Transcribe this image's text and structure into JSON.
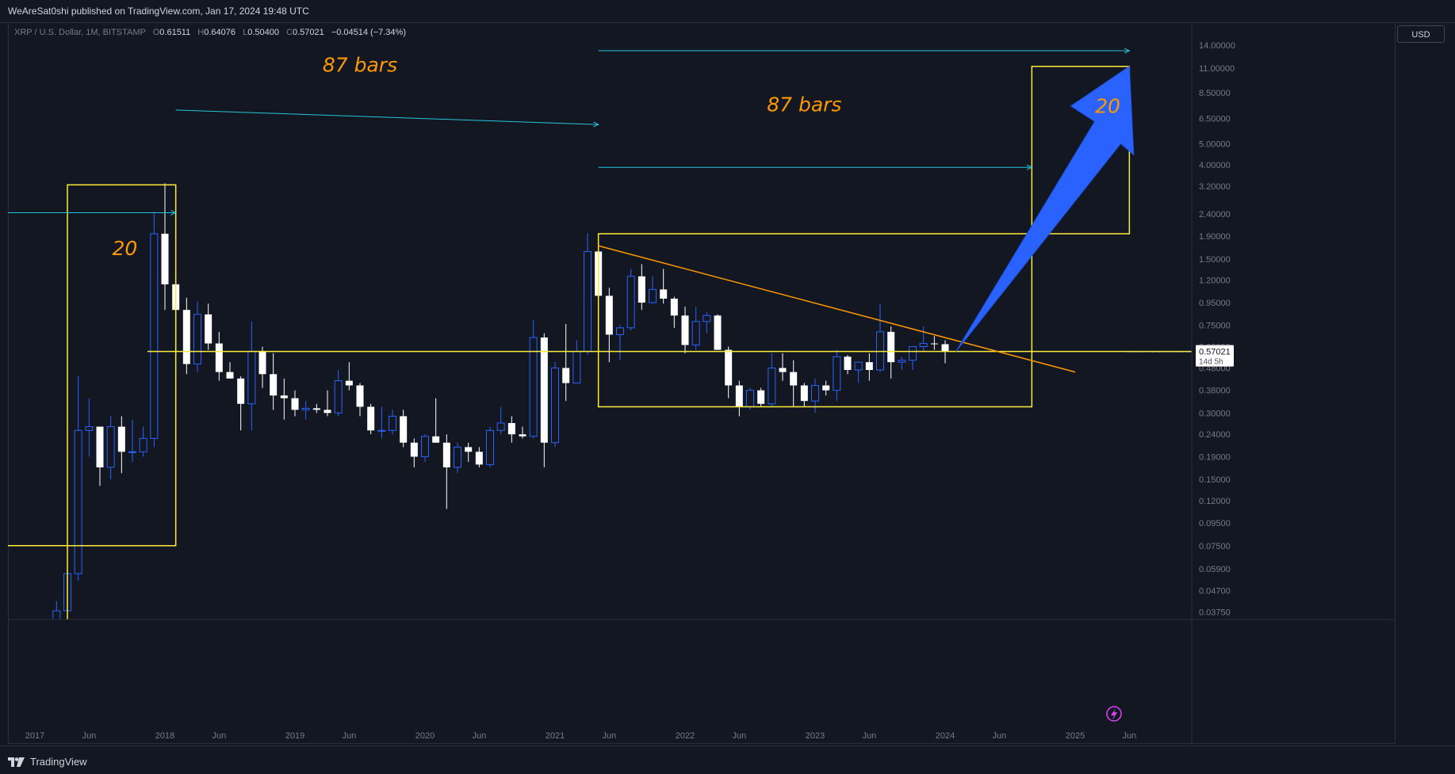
{
  "header": {
    "published": "WeAreSat0shi published on TradingView.com, Jan 17, 2024 19:48 UTC"
  },
  "legend": {
    "symbol": "XRP / U.S. Dollar, 1M, BITSTAMP",
    "o_label": "O",
    "o": "0.61511",
    "h_label": "H",
    "h": "0.64076",
    "l_label": "L",
    "l": "0.50400",
    "c_label": "C",
    "c": "0.57021",
    "change": "−0.04514 (−7.34%)"
  },
  "price_axis": {
    "currency": "USD",
    "current_price": "0.57021",
    "countdown": "14d 5h"
  },
  "footer": {
    "brand": "TradingView"
  },
  "colors": {
    "background": "#131722",
    "up_candle": "#2962ff",
    "down_candle": "#ffffff",
    "yellow": "#ffeb3b",
    "orange": "#ff9800",
    "cyan": "#26c6da",
    "arrow_blue": "#2962ff"
  },
  "chart_data": {
    "type": "candlestick",
    "y_scale": "log",
    "ylim": [
      0.0345,
      18.5
    ],
    "xlim": [
      "2017-01",
      "2025-09"
    ],
    "y_ticks": [
      "14.00000",
      "11.00000",
      "8.50000",
      "6.50000",
      "5.00000",
      "4.00000",
      "3.20000",
      "2.40000",
      "1.90000",
      "1.50000",
      "1.20000",
      "0.95000",
      "0.75000",
      "0.60000",
      "0.48000",
      "0.38000",
      "0.30000",
      "0.24000",
      "0.19000",
      "0.15000",
      "0.12000",
      "0.09500",
      "0.07500",
      "0.05900",
      "0.04700",
      "0.03750"
    ],
    "x_ticks": [
      {
        "t": "2017-01",
        "label": "2017"
      },
      {
        "t": "2017-06",
        "label": "Jun"
      },
      {
        "t": "2018-01",
        "label": "2018"
      },
      {
        "t": "2018-06",
        "label": "Jun"
      },
      {
        "t": "2019-01",
        "label": "2019"
      },
      {
        "t": "2019-06",
        "label": "Jun"
      },
      {
        "t": "2020-01",
        "label": "2020"
      },
      {
        "t": "2020-06",
        "label": "Jun"
      },
      {
        "t": "2021-01",
        "label": "2021"
      },
      {
        "t": "2021-06",
        "label": "Jun"
      },
      {
        "t": "2022-01",
        "label": "2022"
      },
      {
        "t": "2022-06",
        "label": "Jun"
      },
      {
        "t": "2023-01",
        "label": "2023"
      },
      {
        "t": "2023-06",
        "label": "Jun"
      },
      {
        "t": "2024-01",
        "label": "2024"
      },
      {
        "t": "2024-06",
        "label": "Jun"
      },
      {
        "t": "2025-01",
        "label": "2025"
      },
      {
        "t": "2025-06",
        "label": "Jun"
      }
    ],
    "candles": [
      {
        "t": "2017-03",
        "o": 0.0093,
        "h": 0.042,
        "l": 0.009,
        "c": 0.038
      },
      {
        "t": "2017-04",
        "o": 0.038,
        "h": 0.07,
        "l": 0.035,
        "c": 0.056
      },
      {
        "t": "2017-05",
        "o": 0.056,
        "h": 0.44,
        "l": 0.052,
        "c": 0.25
      },
      {
        "t": "2017-06",
        "o": 0.25,
        "h": 0.35,
        "l": 0.19,
        "c": 0.26
      },
      {
        "t": "2017-07",
        "o": 0.26,
        "h": 0.26,
        "l": 0.14,
        "c": 0.17
      },
      {
        "t": "2017-08",
        "o": 0.17,
        "h": 0.29,
        "l": 0.15,
        "c": 0.26
      },
      {
        "t": "2017-09",
        "o": 0.26,
        "h": 0.29,
        "l": 0.16,
        "c": 0.2
      },
      {
        "t": "2017-10",
        "o": 0.2,
        "h": 0.28,
        "l": 0.18,
        "c": 0.2
      },
      {
        "t": "2017-11",
        "o": 0.2,
        "h": 0.26,
        "l": 0.19,
        "c": 0.23
      },
      {
        "t": "2017-12",
        "o": 0.23,
        "h": 2.45,
        "l": 0.21,
        "c": 1.95
      },
      {
        "t": "2018-01",
        "o": 1.95,
        "h": 3.3,
        "l": 0.88,
        "c": 1.15
      },
      {
        "t": "2018-02",
        "o": 1.15,
        "h": 1.25,
        "l": 0.56,
        "c": 0.88
      },
      {
        "t": "2018-03",
        "o": 0.88,
        "h": 1.0,
        "l": 0.45,
        "c": 0.5
      },
      {
        "t": "2018-04",
        "o": 0.5,
        "h": 0.96,
        "l": 0.46,
        "c": 0.84
      },
      {
        "t": "2018-05",
        "o": 0.84,
        "h": 0.94,
        "l": 0.58,
        "c": 0.62
      },
      {
        "t": "2018-06",
        "o": 0.62,
        "h": 0.7,
        "l": 0.42,
        "c": 0.46
      },
      {
        "t": "2018-07",
        "o": 0.46,
        "h": 0.51,
        "l": 0.43,
        "c": 0.43
      },
      {
        "t": "2018-08",
        "o": 0.43,
        "h": 0.44,
        "l": 0.25,
        "c": 0.33
      },
      {
        "t": "2018-09",
        "o": 0.33,
        "h": 0.78,
        "l": 0.25,
        "c": 0.57
      },
      {
        "t": "2018-10",
        "o": 0.57,
        "h": 0.6,
        "l": 0.39,
        "c": 0.45
      },
      {
        "t": "2018-11",
        "o": 0.45,
        "h": 0.56,
        "l": 0.31,
        "c": 0.36
      },
      {
        "t": "2018-12",
        "o": 0.36,
        "h": 0.43,
        "l": 0.28,
        "c": 0.35
      },
      {
        "t": "2019-01",
        "o": 0.35,
        "h": 0.38,
        "l": 0.29,
        "c": 0.31
      },
      {
        "t": "2019-02",
        "o": 0.31,
        "h": 0.34,
        "l": 0.28,
        "c": 0.315
      },
      {
        "t": "2019-03",
        "o": 0.315,
        "h": 0.33,
        "l": 0.3,
        "c": 0.31
      },
      {
        "t": "2019-04",
        "o": 0.31,
        "h": 0.38,
        "l": 0.29,
        "c": 0.3
      },
      {
        "t": "2019-05",
        "o": 0.3,
        "h": 0.47,
        "l": 0.29,
        "c": 0.42
      },
      {
        "t": "2019-06",
        "o": 0.42,
        "h": 0.51,
        "l": 0.38,
        "c": 0.4
      },
      {
        "t": "2019-07",
        "o": 0.4,
        "h": 0.41,
        "l": 0.29,
        "c": 0.32
      },
      {
        "t": "2019-08",
        "o": 0.32,
        "h": 0.33,
        "l": 0.24,
        "c": 0.25
      },
      {
        "t": "2019-09",
        "o": 0.25,
        "h": 0.32,
        "l": 0.23,
        "c": 0.25
      },
      {
        "t": "2019-10",
        "o": 0.25,
        "h": 0.31,
        "l": 0.24,
        "c": 0.29
      },
      {
        "t": "2019-11",
        "o": 0.29,
        "h": 0.31,
        "l": 0.21,
        "c": 0.22
      },
      {
        "t": "2019-12",
        "o": 0.22,
        "h": 0.23,
        "l": 0.17,
        "c": 0.19
      },
      {
        "t": "2020-01",
        "o": 0.19,
        "h": 0.24,
        "l": 0.18,
        "c": 0.235
      },
      {
        "t": "2020-02",
        "o": 0.235,
        "h": 0.35,
        "l": 0.22,
        "c": 0.22
      },
      {
        "t": "2020-03",
        "o": 0.22,
        "h": 0.24,
        "l": 0.11,
        "c": 0.17
      },
      {
        "t": "2020-04",
        "o": 0.17,
        "h": 0.22,
        "l": 0.16,
        "c": 0.21
      },
      {
        "t": "2020-05",
        "o": 0.21,
        "h": 0.22,
        "l": 0.18,
        "c": 0.2
      },
      {
        "t": "2020-06",
        "o": 0.2,
        "h": 0.21,
        "l": 0.17,
        "c": 0.175
      },
      {
        "t": "2020-07",
        "o": 0.175,
        "h": 0.26,
        "l": 0.17,
        "c": 0.25
      },
      {
        "t": "2020-08",
        "o": 0.25,
        "h": 0.32,
        "l": 0.24,
        "c": 0.27
      },
      {
        "t": "2020-09",
        "o": 0.27,
        "h": 0.29,
        "l": 0.22,
        "c": 0.24
      },
      {
        "t": "2020-10",
        "o": 0.24,
        "h": 0.26,
        "l": 0.23,
        "c": 0.235
      },
      {
        "t": "2020-11",
        "o": 0.235,
        "h": 0.79,
        "l": 0.23,
        "c": 0.66
      },
      {
        "t": "2020-12",
        "o": 0.66,
        "h": 0.69,
        "l": 0.17,
        "c": 0.22
      },
      {
        "t": "2021-01",
        "o": 0.22,
        "h": 0.51,
        "l": 0.21,
        "c": 0.48
      },
      {
        "t": "2021-02",
        "o": 0.48,
        "h": 0.76,
        "l": 0.34,
        "c": 0.41
      },
      {
        "t": "2021-03",
        "o": 0.41,
        "h": 0.64,
        "l": 0.41,
        "c": 0.57
      },
      {
        "t": "2021-04",
        "o": 0.57,
        "h": 1.96,
        "l": 0.55,
        "c": 1.62
      },
      {
        "t": "2021-05",
        "o": 1.62,
        "h": 1.76,
        "l": 0.65,
        "c": 1.02
      },
      {
        "t": "2021-06",
        "o": 1.02,
        "h": 1.11,
        "l": 0.51,
        "c": 0.68
      },
      {
        "t": "2021-07",
        "o": 0.68,
        "h": 0.75,
        "l": 0.52,
        "c": 0.73
      },
      {
        "t": "2021-08",
        "o": 0.73,
        "h": 1.35,
        "l": 0.71,
        "c": 1.25
      },
      {
        "t": "2021-09",
        "o": 1.25,
        "h": 1.42,
        "l": 0.88,
        "c": 0.95
      },
      {
        "t": "2021-10",
        "o": 0.95,
        "h": 1.25,
        "l": 0.94,
        "c": 1.09
      },
      {
        "t": "2021-11",
        "o": 1.09,
        "h": 1.35,
        "l": 0.94,
        "c": 0.99
      },
      {
        "t": "2021-12",
        "o": 0.99,
        "h": 1.01,
        "l": 0.73,
        "c": 0.83
      },
      {
        "t": "2022-01",
        "o": 0.83,
        "h": 0.91,
        "l": 0.56,
        "c": 0.61
      },
      {
        "t": "2022-02",
        "o": 0.61,
        "h": 0.91,
        "l": 0.58,
        "c": 0.78
      },
      {
        "t": "2022-03",
        "o": 0.78,
        "h": 0.86,
        "l": 0.69,
        "c": 0.83
      },
      {
        "t": "2022-04",
        "o": 0.83,
        "h": 0.84,
        "l": 0.58,
        "c": 0.58
      },
      {
        "t": "2022-05",
        "o": 0.58,
        "h": 0.6,
        "l": 0.35,
        "c": 0.4
      },
      {
        "t": "2022-06",
        "o": 0.4,
        "h": 0.42,
        "l": 0.29,
        "c": 0.32
      },
      {
        "t": "2022-07",
        "o": 0.32,
        "h": 0.39,
        "l": 0.31,
        "c": 0.38
      },
      {
        "t": "2022-08",
        "o": 0.38,
        "h": 0.39,
        "l": 0.32,
        "c": 0.33
      },
      {
        "t": "2022-09",
        "o": 0.33,
        "h": 0.56,
        "l": 0.32,
        "c": 0.48
      },
      {
        "t": "2022-10",
        "o": 0.48,
        "h": 0.56,
        "l": 0.42,
        "c": 0.46
      },
      {
        "t": "2022-11",
        "o": 0.46,
        "h": 0.52,
        "l": 0.32,
        "c": 0.4
      },
      {
        "t": "2022-12",
        "o": 0.4,
        "h": 0.41,
        "l": 0.32,
        "c": 0.34
      },
      {
        "t": "2023-01",
        "o": 0.34,
        "h": 0.43,
        "l": 0.3,
        "c": 0.4
      },
      {
        "t": "2023-02",
        "o": 0.4,
        "h": 0.42,
        "l": 0.36,
        "c": 0.38
      },
      {
        "t": "2023-03",
        "o": 0.38,
        "h": 0.58,
        "l": 0.34,
        "c": 0.54
      },
      {
        "t": "2023-04",
        "o": 0.54,
        "h": 0.55,
        "l": 0.45,
        "c": 0.47
      },
      {
        "t": "2023-05",
        "o": 0.47,
        "h": 0.49,
        "l": 0.41,
        "c": 0.51
      },
      {
        "t": "2023-06",
        "o": 0.51,
        "h": 0.56,
        "l": 0.42,
        "c": 0.47
      },
      {
        "t": "2023-07",
        "o": 0.47,
        "h": 0.94,
        "l": 0.46,
        "c": 0.7
      },
      {
        "t": "2023-08",
        "o": 0.7,
        "h": 0.74,
        "l": 0.43,
        "c": 0.51
      },
      {
        "t": "2023-09",
        "o": 0.51,
        "h": 0.54,
        "l": 0.47,
        "c": 0.52
      },
      {
        "t": "2023-10",
        "o": 0.52,
        "h": 0.59,
        "l": 0.47,
        "c": 0.6
      },
      {
        "t": "2023-11",
        "o": 0.6,
        "h": 0.74,
        "l": 0.57,
        "c": 0.62
      },
      {
        "t": "2023-12",
        "o": 0.62,
        "h": 0.67,
        "l": 0.58,
        "c": 0.615
      },
      {
        "t": "2024-01",
        "o": 0.61511,
        "h": 0.64076,
        "l": 0.504,
        "c": 0.57021
      }
    ],
    "annotations": {
      "horizontal_line_price": 0.57021,
      "labels": [
        "87 bars",
        "87 bars",
        "20",
        "20"
      ]
    }
  }
}
